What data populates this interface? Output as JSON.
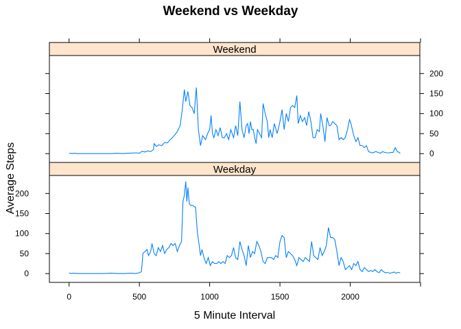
{
  "chart_data": {
    "type": "line",
    "title": "Weekend vs Weekday",
    "xlabel": "5 Minute Interval",
    "ylabel": "Average Steps",
    "xlim": [
      -140,
      2495
    ],
    "ylim": [
      -22,
      245
    ],
    "x_ticks": [
      0,
      500,
      1000,
      1500,
      2000
    ],
    "y_ticks": [
      0,
      50,
      100,
      150,
      200
    ],
    "line_color": "#0080ff",
    "strip_color": "#ffe5cc",
    "layout": "two stacked panels sharing x axis",
    "panels": [
      {
        "name": "Weekend",
        "points": [
          [
            0,
            0
          ],
          [
            10,
            1
          ],
          [
            20,
            0
          ],
          [
            35,
            1
          ],
          [
            60,
            0
          ],
          [
            100,
            0
          ],
          [
            200,
            0
          ],
          [
            300,
            0
          ],
          [
            340,
            1
          ],
          [
            380,
            0
          ],
          [
            420,
            1
          ],
          [
            480,
            2
          ],
          [
            500,
            1
          ],
          [
            520,
            6
          ],
          [
            540,
            4
          ],
          [
            560,
            7
          ],
          [
            580,
            5
          ],
          [
            600,
            10
          ],
          [
            605,
            25
          ],
          [
            620,
            18
          ],
          [
            640,
            22
          ],
          [
            660,
            20
          ],
          [
            680,
            28
          ],
          [
            700,
            27
          ],
          [
            720,
            35
          ],
          [
            735,
            40
          ],
          [
            755,
            48
          ],
          [
            770,
            55
          ],
          [
            790,
            70
          ],
          [
            805,
            110
          ],
          [
            820,
            160
          ],
          [
            830,
            130
          ],
          [
            845,
            155
          ],
          [
            860,
            120
          ],
          [
            875,
            115
          ],
          [
            890,
            100
          ],
          [
            905,
            165
          ],
          [
            920,
            60
          ],
          [
            935,
            20
          ],
          [
            950,
            45
          ],
          [
            970,
            35
          ],
          [
            985,
            50
          ],
          [
            1000,
            60
          ],
          [
            1010,
            95
          ],
          [
            1020,
            50
          ],
          [
            1030,
            40
          ],
          [
            1045,
            60
          ],
          [
            1060,
            45
          ],
          [
            1075,
            65
          ],
          [
            1090,
            40
          ],
          [
            1105,
            40
          ],
          [
            1120,
            50
          ],
          [
            1135,
            35
          ],
          [
            1150,
            60
          ],
          [
            1170,
            40
          ],
          [
            1185,
            70
          ],
          [
            1200,
            45
          ],
          [
            1215,
            130
          ],
          [
            1230,
            60
          ],
          [
            1245,
            40
          ],
          [
            1260,
            70
          ],
          [
            1270,
            75
          ],
          [
            1280,
            50
          ],
          [
            1290,
            80
          ],
          [
            1300,
            60
          ],
          [
            1310,
            60
          ],
          [
            1320,
            40
          ],
          [
            1330,
            25
          ],
          [
            1340,
            60
          ],
          [
            1355,
            50
          ],
          [
            1370,
            40
          ],
          [
            1380,
            125
          ],
          [
            1395,
            100
          ],
          [
            1410,
            80
          ],
          [
            1420,
            40
          ],
          [
            1430,
            60
          ],
          [
            1445,
            40
          ],
          [
            1460,
            75
          ],
          [
            1480,
            50
          ],
          [
            1500,
            80
          ],
          [
            1515,
            110
          ],
          [
            1530,
            60
          ],
          [
            1545,
            100
          ],
          [
            1560,
            80
          ],
          [
            1575,
            115
          ],
          [
            1590,
            120
          ],
          [
            1605,
            115
          ],
          [
            1620,
            145
          ],
          [
            1630,
            75
          ],
          [
            1645,
            95
          ],
          [
            1660,
            80
          ],
          [
            1675,
            90
          ],
          [
            1690,
            70
          ],
          [
            1705,
            105
          ],
          [
            1720,
            80
          ],
          [
            1735,
            40
          ],
          [
            1750,
            40
          ],
          [
            1765,
            60
          ],
          [
            1780,
            55
          ],
          [
            1790,
            100
          ],
          [
            1805,
            70
          ],
          [
            1820,
            30
          ],
          [
            1835,
            90
          ],
          [
            1850,
            70
          ],
          [
            1860,
            70
          ],
          [
            1875,
            80
          ],
          [
            1890,
            75
          ],
          [
            1905,
            70
          ],
          [
            1920,
            35
          ],
          [
            1935,
            40
          ],
          [
            1950,
            35
          ],
          [
            1965,
            40
          ],
          [
            1980,
            60
          ],
          [
            1995,
            85
          ],
          [
            2005,
            75
          ],
          [
            2015,
            60
          ],
          [
            2025,
            45
          ],
          [
            2040,
            30
          ],
          [
            2055,
            40
          ],
          [
            2070,
            20
          ],
          [
            2085,
            20
          ],
          [
            2100,
            15
          ],
          [
            2115,
            20
          ],
          [
            2130,
            5
          ],
          [
            2145,
            3
          ],
          [
            2160,
            2
          ],
          [
            2180,
            5
          ],
          [
            2200,
            3
          ],
          [
            2215,
            1
          ],
          [
            2230,
            5
          ],
          [
            2245,
            3
          ],
          [
            2260,
            2
          ],
          [
            2275,
            2
          ],
          [
            2290,
            3
          ],
          [
            2305,
            3
          ],
          [
            2320,
            15
          ],
          [
            2335,
            5
          ],
          [
            2350,
            3
          ],
          [
            2355,
            0
          ]
        ]
      },
      {
        "name": "Weekday",
        "points": [
          [
            0,
            2
          ],
          [
            10,
            0
          ],
          [
            30,
            1
          ],
          [
            60,
            0
          ],
          [
            100,
            0
          ],
          [
            150,
            0
          ],
          [
            200,
            0
          ],
          [
            250,
            0
          ],
          [
            300,
            1
          ],
          [
            350,
            0
          ],
          [
            400,
            0
          ],
          [
            440,
            1
          ],
          [
            470,
            0
          ],
          [
            500,
            2
          ],
          [
            515,
            5
          ],
          [
            525,
            50
          ],
          [
            540,
            55
          ],
          [
            555,
            60
          ],
          [
            565,
            45
          ],
          [
            580,
            55
          ],
          [
            590,
            75
          ],
          [
            605,
            50
          ],
          [
            620,
            45
          ],
          [
            635,
            65
          ],
          [
            650,
            55
          ],
          [
            665,
            70
          ],
          [
            680,
            50
          ],
          [
            695,
            60
          ],
          [
            710,
            65
          ],
          [
            725,
            75
          ],
          [
            740,
            70
          ],
          [
            755,
            75
          ],
          [
            770,
            55
          ],
          [
            785,
            70
          ],
          [
            800,
            80
          ],
          [
            810,
            180
          ],
          [
            820,
            195
          ],
          [
            830,
            230
          ],
          [
            838,
            180
          ],
          [
            845,
            215
          ],
          [
            855,
            175
          ],
          [
            865,
            170
          ],
          [
            880,
            170
          ],
          [
            900,
            165
          ],
          [
            912,
            105
          ],
          [
            922,
            80
          ],
          [
            935,
            45
          ],
          [
            945,
            60
          ],
          [
            960,
            40
          ],
          [
            975,
            25
          ],
          [
            990,
            40
          ],
          [
            1005,
            20
          ],
          [
            1020,
            30
          ],
          [
            1035,
            25
          ],
          [
            1050,
            25
          ],
          [
            1065,
            30
          ],
          [
            1080,
            25
          ],
          [
            1095,
            30
          ],
          [
            1110,
            25
          ],
          [
            1125,
            45
          ],
          [
            1140,
            40
          ],
          [
            1155,
            45
          ],
          [
            1170,
            65
          ],
          [
            1185,
            40
          ],
          [
            1200,
            35
          ],
          [
            1215,
            80
          ],
          [
            1230,
            60
          ],
          [
            1245,
            45
          ],
          [
            1260,
            20
          ],
          [
            1275,
            70
          ],
          [
            1290,
            40
          ],
          [
            1305,
            55
          ],
          [
            1320,
            50
          ],
          [
            1335,
            80
          ],
          [
            1350,
            70
          ],
          [
            1365,
            55
          ],
          [
            1380,
            30
          ],
          [
            1395,
            25
          ],
          [
            1410,
            40
          ],
          [
            1425,
            40
          ],
          [
            1440,
            40
          ],
          [
            1455,
            35
          ],
          [
            1470,
            45
          ],
          [
            1485,
            40
          ],
          [
            1500,
            80
          ],
          [
            1515,
            95
          ],
          [
            1530,
            90
          ],
          [
            1545,
            40
          ],
          [
            1560,
            55
          ],
          [
            1575,
            50
          ],
          [
            1590,
            45
          ],
          [
            1605,
            35
          ],
          [
            1620,
            20
          ],
          [
            1635,
            40
          ],
          [
            1650,
            35
          ],
          [
            1665,
            30
          ],
          [
            1680,
            40
          ],
          [
            1695,
            35
          ],
          [
            1710,
            30
          ],
          [
            1725,
            80
          ],
          [
            1740,
            45
          ],
          [
            1755,
            40
          ],
          [
            1770,
            35
          ],
          [
            1785,
            65
          ],
          [
            1800,
            45
          ],
          [
            1815,
            55
          ],
          [
            1830,
            70
          ],
          [
            1845,
            115
          ],
          [
            1860,
            90
          ],
          [
            1875,
            90
          ],
          [
            1890,
            85
          ],
          [
            1905,
            55
          ],
          [
            1920,
            20
          ],
          [
            1935,
            40
          ],
          [
            1950,
            30
          ],
          [
            1965,
            10
          ],
          [
            1980,
            15
          ],
          [
            1995,
            20
          ],
          [
            2010,
            10
          ],
          [
            2025,
            25
          ],
          [
            2040,
            20
          ],
          [
            2055,
            30
          ],
          [
            2070,
            10
          ],
          [
            2085,
            5
          ],
          [
            2100,
            15
          ],
          [
            2115,
            10
          ],
          [
            2130,
            5
          ],
          [
            2145,
            8
          ],
          [
            2160,
            5
          ],
          [
            2175,
            10
          ],
          [
            2190,
            5
          ],
          [
            2205,
            2
          ],
          [
            2220,
            10
          ],
          [
            2235,
            5
          ],
          [
            2250,
            2
          ],
          [
            2265,
            3
          ],
          [
            2280,
            1
          ],
          [
            2295,
            2
          ],
          [
            2310,
            4
          ],
          [
            2325,
            1
          ],
          [
            2340,
            3
          ],
          [
            2355,
            2
          ]
        ]
      }
    ]
  }
}
